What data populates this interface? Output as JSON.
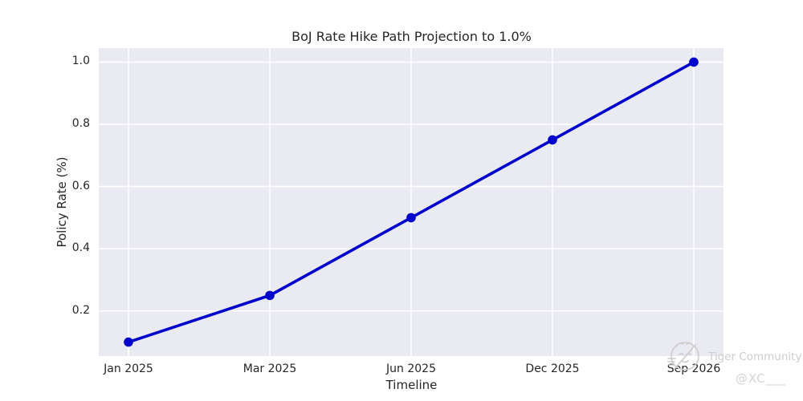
{
  "chart_data": {
    "type": "line",
    "title": "BoJ Rate Hike Path Projection to 1.0%",
    "xlabel": "Timeline",
    "ylabel": "Policy Rate (%)",
    "categories": [
      "Jan 2025",
      "Mar 2025",
      "Jun 2025",
      "Dec 2025",
      "Sep 2026"
    ],
    "values": [
      0.1,
      0.25,
      0.5,
      0.75,
      1.0
    ],
    "yticks": [
      0.2,
      0.4,
      0.6,
      0.8,
      1.0
    ],
    "ylim": [
      0.055,
      1.045
    ],
    "grid": true,
    "legend": "none",
    "line_color": "#0000cd",
    "marker_color": "#0000cd",
    "plot_bg_color": "#eaeaf2",
    "grid_color": "#ffffff"
  },
  "watermark": {
    "logo": "tiger-logo",
    "community": "Tiger Community",
    "handle": "@XC___",
    "color": "#cdcdcd"
  }
}
